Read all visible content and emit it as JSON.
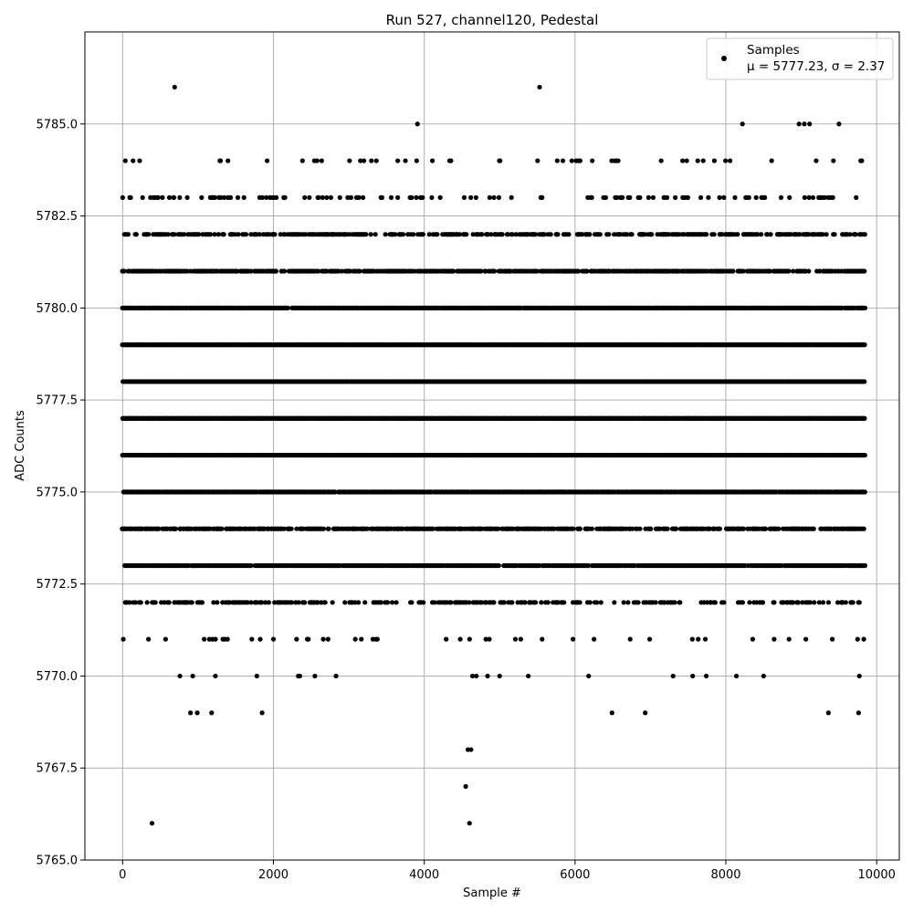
{
  "chart_data": {
    "type": "scatter",
    "title": "Run 527, channel120, Pedestal",
    "xlabel": "Sample #",
    "ylabel": "ADC Counts",
    "xlim": [
      -500,
      10300
    ],
    "ylim": [
      5765.0,
      5787.5
    ],
    "x_ticks": [
      0,
      2000,
      4000,
      6000,
      8000,
      10000
    ],
    "x_tick_labels": [
      "0",
      "2000",
      "4000",
      "6000",
      "8000",
      "10000"
    ],
    "y_ticks": [
      5765.0,
      5767.5,
      5770.0,
      5772.5,
      5775.0,
      5777.5,
      5780.0,
      5782.5,
      5785.0
    ],
    "y_tick_labels": [
      "5765.0",
      "5767.5",
      "5770.0",
      "5772.5",
      "5775.0",
      "5777.5",
      "5780.0",
      "5782.5",
      "5785.0"
    ],
    "grid": true,
    "legend_position": "top-right",
    "marker_color": "#000000",
    "series": [
      {
        "name": "Samples",
        "stats_label": "μ = 5777.23, σ = 2.37",
        "mean": 5777.23,
        "std": 2.37,
        "x_range": [
          0,
          9850
        ],
        "band_points": [
          {
            "y": 5766,
            "x": [
              390,
              4600
            ]
          },
          {
            "y": 5767,
            "x": [
              4550
            ]
          },
          {
            "y": 5768,
            "x": [
              4580,
              4620
            ]
          },
          {
            "y": 5769,
            "x": [
              900,
              990,
              1180,
              1850,
              6490,
              6930,
              9360,
              9760
            ]
          },
          {
            "y": 5770,
            "x": [
              760,
              930,
              1230,
              1780,
              2330,
              2350,
              2550,
              2830,
              4640,
              4690,
              4840,
              5000,
              5380,
              6180,
              7300,
              7560,
              7740,
              8140,
              8500,
              9770
            ]
          },
          {
            "y": 5786,
            "x": [
              690,
              5530
            ]
          },
          {
            "y": 5785,
            "x": [
              3910,
              8220,
              8970,
              9040,
              9110,
              9500
            ]
          }
        ],
        "dense_bands": [
          {
            "y": 5771,
            "density": 0.06
          },
          {
            "y": 5772,
            "density": 0.28
          },
          {
            "y": 5773,
            "density": 0.85
          },
          {
            "y": 5774,
            "density": 0.62
          },
          {
            "y": 5775,
            "density": 0.98
          },
          {
            "y": 5776,
            "density": 1.0
          },
          {
            "y": 5777,
            "density": 1.0
          },
          {
            "y": 5778,
            "density": 0.98
          },
          {
            "y": 5779,
            "density": 1.0
          },
          {
            "y": 5780,
            "density": 0.95
          },
          {
            "y": 5781,
            "density": 0.62
          },
          {
            "y": 5782,
            "density": 0.42
          },
          {
            "y": 5783,
            "density": 0.14
          },
          {
            "y": 5784,
            "density": 0.06
          }
        ]
      }
    ]
  }
}
